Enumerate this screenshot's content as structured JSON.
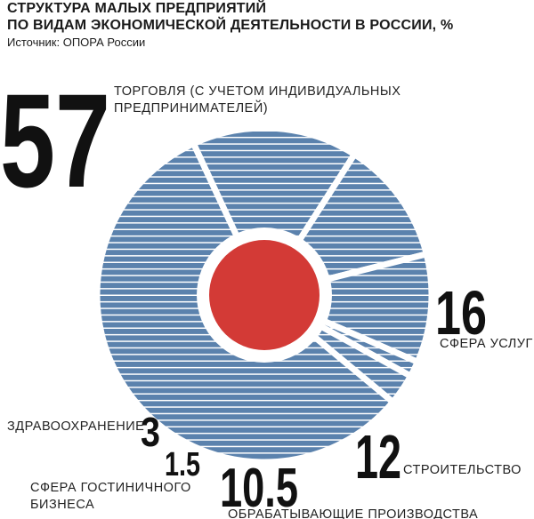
{
  "header": {
    "title_line1": "СТРУКТУРА МАЛЫХ ПРЕДПРИЯТИЙ",
    "title_line2": "ПО ВИДАМ ЭКОНОМИЧЕСКОЙ ДЕЯТЕЛЬНОСТИ В РОССИИ, %",
    "source": "Источник: ОПОРА России"
  },
  "colors": {
    "slice": "#5b82ad",
    "stripe": "#ffffff",
    "center": "#d33a36",
    "text": "#111111"
  },
  "chart_data": {
    "type": "pie",
    "title": "СТРУКТУРА МАЛЫХ ПРЕДПРИЯТИЙ ПО ВИДАМ ЭКОНОМИЧЕСКОЙ ДЕЯТЕЛЬНОСТИ В РОССИИ, %",
    "unit": "%",
    "legend": "none",
    "slices": [
      {
        "value_label": "57",
        "value": 57,
        "label_lines": [
          "ТОРГОВЛЯ (С УЧЕТОМ ИНДИВИДУАЛЬНЫХ",
          "ПРЕДПРИНИМАТЕЛЕЙ)"
        ]
      },
      {
        "value_label": "16",
        "value": 16,
        "label_lines": [
          "СФЕРА УСЛУГ"
        ]
      },
      {
        "value_label": "12",
        "value": 12,
        "label_lines": [
          "СТРОИТЕЛЬСТВО"
        ]
      },
      {
        "value_label": "10.5",
        "value": 10.5,
        "label_lines": [
          "ОБРАБАТЫВАЮЩИЕ ПРОИЗВОДСТВА"
        ]
      },
      {
        "value_label": "1.5",
        "value": 1.5,
        "label_lines": [
          "СФЕРА ГОСТИНИЧНОГО",
          "БИЗНЕСА"
        ]
      },
      {
        "value_label": "3",
        "value": 3,
        "label_lines": [
          "ЗДРАВООХРАНЕНИЕ"
        ]
      }
    ]
  }
}
